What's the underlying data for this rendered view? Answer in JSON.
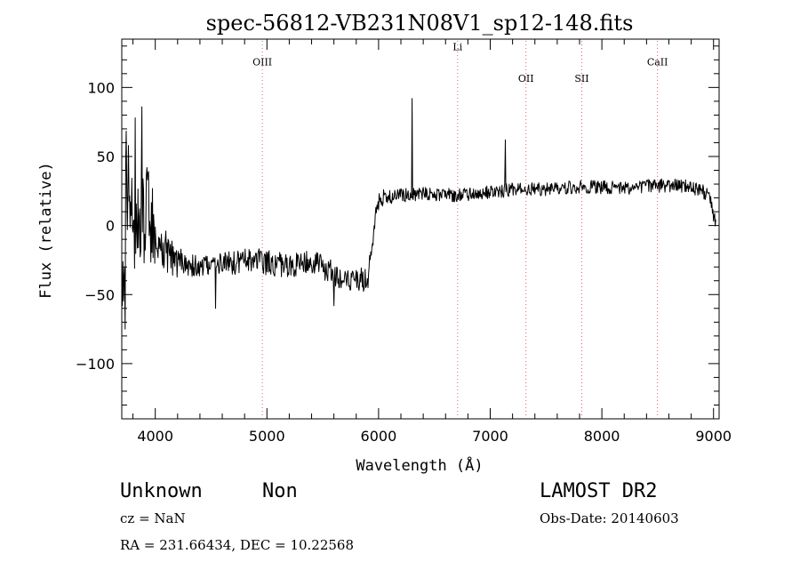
{
  "chart_data": {
    "type": "line",
    "title": "spec-56812-VB231N08V1_sp12-148.fits",
    "xlabel": "Wavelength (Å)",
    "ylabel": "Flux (relative)",
    "xlim": [
      3700,
      9050
    ],
    "ylim": [
      -140,
      135
    ],
    "xticks": [
      4000,
      5000,
      6000,
      7000,
      8000,
      9000
    ],
    "yticks": [
      100,
      50,
      0,
      -50,
      -100
    ],
    "xtick_labels": [
      "4000",
      "5000",
      "6000",
      "7000",
      "8000",
      "9000"
    ],
    "ytick_labels": [
      "100",
      "50",
      "0",
      "−50",
      "−100"
    ],
    "line_color": "#000000",
    "marker_color": "#e06060",
    "lines": [
      {
        "label": "OIII",
        "wavelength": 4959,
        "label_y": 116
      },
      {
        "label": "Li",
        "wavelength": 6708,
        "label_y": 127
      },
      {
        "label": "OII",
        "wavelength": 7320,
        "label_y": 104
      },
      {
        "label": "SII",
        "wavelength": 7820,
        "label_y": 104
      },
      {
        "label": "CaII",
        "wavelength": 8498,
        "label_y": 116
      }
    ],
    "spectrum_anchors": [
      [
        3720,
        -55
      ],
      [
        3740,
        40
      ],
      [
        3760,
        25
      ],
      [
        3800,
        5
      ],
      [
        3850,
        0
      ],
      [
        3900,
        5
      ],
      [
        3950,
        10
      ],
      [
        4000,
        -5
      ],
      [
        4050,
        -15
      ],
      [
        4100,
        -20
      ],
      [
        4200,
        -25
      ],
      [
        4300,
        -28
      ],
      [
        4400,
        -30
      ],
      [
        4500,
        -30
      ],
      [
        4600,
        -28
      ],
      [
        4700,
        -27
      ],
      [
        4800,
        -26
      ],
      [
        4900,
        -25
      ],
      [
        5000,
        -27
      ],
      [
        5100,
        -28
      ],
      [
        5200,
        -30
      ],
      [
        5300,
        -28
      ],
      [
        5400,
        -27
      ],
      [
        5500,
        -30
      ],
      [
        5600,
        -35
      ],
      [
        5700,
        -38
      ],
      [
        5800,
        -38
      ],
      [
        5900,
        -40
      ],
      [
        5940,
        -20
      ],
      [
        5980,
        15
      ],
      [
        6050,
        20
      ],
      [
        6200,
        22
      ],
      [
        6400,
        23
      ],
      [
        6600,
        22
      ],
      [
        6800,
        22
      ],
      [
        7000,
        24
      ],
      [
        7200,
        26
      ],
      [
        7400,
        26
      ],
      [
        7600,
        27
      ],
      [
        7800,
        28
      ],
      [
        8000,
        28
      ],
      [
        8200,
        27
      ],
      [
        8400,
        29
      ],
      [
        8600,
        29
      ],
      [
        8800,
        28
      ],
      [
        8900,
        25
      ],
      [
        8970,
        20
      ],
      [
        9000,
        8
      ],
      [
        9020,
        0
      ]
    ],
    "spikes": [
      {
        "wavelength": 6300,
        "flux": 92
      },
      {
        "wavelength": 7135,
        "flux": 62
      },
      {
        "wavelength": 3880,
        "flux": 86
      },
      {
        "wavelength": 3820,
        "flux": 78
      },
      {
        "wavelength": 3730,
        "flux": -75
      },
      {
        "wavelength": 3760,
        "flux": 58
      },
      {
        "wavelength": 4540,
        "flux": -60
      },
      {
        "wavelength": 5600,
        "flux": -58
      }
    ]
  },
  "info": {
    "class_name": "Unknown",
    "subclass": "Non",
    "survey": "LAMOST DR2",
    "redshift": "cz = NaN",
    "obs_date": "Obs-Date: 20140603",
    "coordinates": "RA = 231.66434, DEC =  10.22568"
  }
}
